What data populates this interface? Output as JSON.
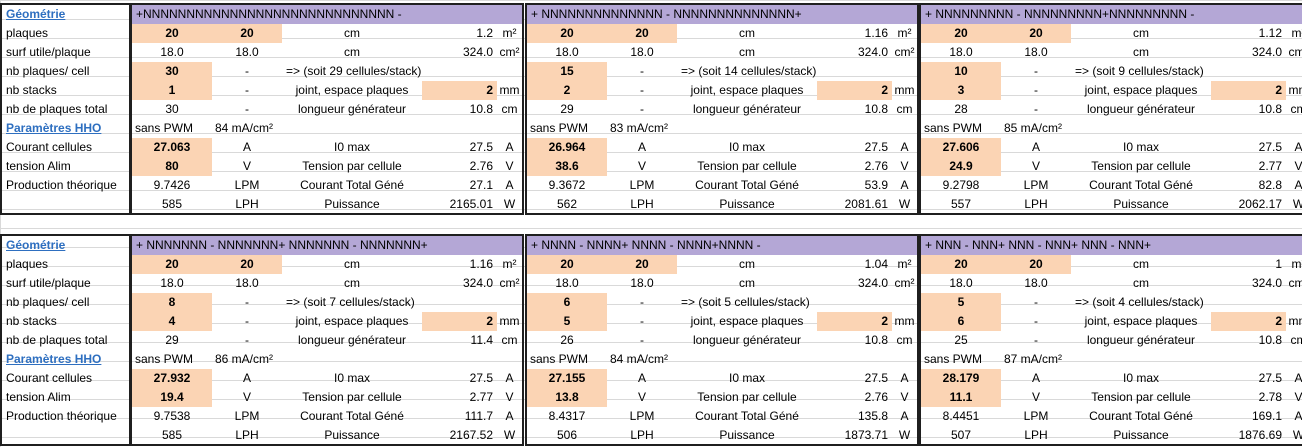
{
  "labels": {
    "geometrie": "Géométrie",
    "plaques": "plaques",
    "surf_utile": "surf utile/plaque",
    "nb_plaques_cell": "nb plaques/ cell",
    "nb_stacks": "nb stacks",
    "nb_plaques_total": "nb de plaques total",
    "parametres_hho": "Paramètres HHO",
    "courant_cellules": "Courant cellules",
    "tension_alim": "tension Alim",
    "production_theorique": "Production théorique"
  },
  "common": {
    "cm": "cm",
    "m2": "m²",
    "cm2": "cm²",
    "dash": "-",
    "joint": "joint, espace plaques",
    "mm": "mm",
    "longueur": "longueur générateur",
    "sans_pwm": "sans PWM",
    "i0max": "I0 max",
    "A": "A",
    "V": "V",
    "tension_cellule": "Tension par cellule",
    "LPM": "LPM",
    "courant_total": "Courant Total Géné",
    "LPH": "LPH",
    "puissance": "Puissance",
    "W": "W"
  },
  "blocks": [
    [
      {
        "header": "+NNNNNNNNNNNNNNNNNNNNNNNNNNNNN -",
        "plaques_a": "20",
        "plaques_b": "20",
        "plaques_val": "1.2",
        "surf_a": "18.0",
        "surf_b": "18.0",
        "surf_val": "324.0",
        "nb_cell": "30",
        "soit": "=> (soit 29 cellules/stack)",
        "nb_stacks": "1",
        "espace": "2",
        "total": "30",
        "longueur_val": "10.8",
        "density": "84 mA/cm²",
        "courant": "27.063",
        "i0": "27.5",
        "tension": "80",
        "tension_cell": "2.76",
        "prod_lpm": "9.7426",
        "courant_total": "27.1",
        "prod_lph": "585",
        "puissance": "2165.01"
      },
      {
        "header": "+ NNNNNNNNNNNNNN - NNNNNNNNNNNNNN+",
        "plaques_a": "20",
        "plaques_b": "20",
        "plaques_val": "1.16",
        "surf_a": "18.0",
        "surf_b": "18.0",
        "surf_val": "324.0",
        "nb_cell": "15",
        "soit": "=> (soit 14 cellules/stack)",
        "nb_stacks": "2",
        "espace": "2",
        "total": "29",
        "longueur_val": "10.8",
        "density": "83 mA/cm²",
        "courant": "26.964",
        "i0": "27.5",
        "tension": "38.6",
        "tension_cell": "2.76",
        "prod_lpm": "9.3672",
        "courant_total": "53.9",
        "prod_lph": "562",
        "puissance": "2081.61"
      },
      {
        "header": "+ NNNNNNNNN - NNNNNNNNN+NNNNNNNNN -",
        "plaques_a": "20",
        "plaques_b": "20",
        "plaques_val": "1.12",
        "surf_a": "18.0",
        "surf_b": "18.0",
        "surf_val": "324.0",
        "nb_cell": "10",
        "soit": "=> (soit 9 cellules/stack)",
        "nb_stacks": "3",
        "espace": "2",
        "total": "28",
        "longueur_val": "10.8",
        "density": "85 mA/cm²",
        "courant": "27.606",
        "i0": "27.5",
        "tension": "24.9",
        "tension_cell": "2.77",
        "prod_lpm": "9.2798",
        "courant_total": "82.8",
        "prod_lph": "557",
        "puissance": "2062.17"
      }
    ],
    [
      {
        "header": "+ NNNNNNN - NNNNNNN+ NNNNNNN - NNNNNNN+",
        "plaques_a": "20",
        "plaques_b": "20",
        "plaques_val": "1.16",
        "surf_a": "18.0",
        "surf_b": "18.0",
        "surf_val": "324.0",
        "nb_cell": "8",
        "soit": "=> (soit 7 cellules/stack)",
        "nb_stacks": "4",
        "espace": "2",
        "total": "29",
        "longueur_val": "11.4",
        "density": "86 mA/cm²",
        "courant": "27.932",
        "i0": "27.5",
        "tension": "19.4",
        "tension_cell": "2.77",
        "prod_lpm": "9.7538",
        "courant_total": "111.7",
        "prod_lph": "585",
        "puissance": "2167.52"
      },
      {
        "header": "+ NNNN - NNNN+ NNNN - NNNN+NNNN -",
        "plaques_a": "20",
        "plaques_b": "20",
        "plaques_val": "1.04",
        "surf_a": "18.0",
        "surf_b": "18.0",
        "surf_val": "324.0",
        "nb_cell": "6",
        "soit": "=> (soit 5 cellules/stack)",
        "nb_stacks": "5",
        "espace": "2",
        "total": "26",
        "longueur_val": "10.8",
        "density": "84 mA/cm²",
        "courant": "27.155",
        "i0": "27.5",
        "tension": "13.8",
        "tension_cell": "2.76",
        "prod_lpm": "8.4317",
        "courant_total": "135.8",
        "prod_lph": "506",
        "puissance": "1873.71"
      },
      {
        "header": "+ NNN - NNN+ NNN - NNN+ NNN - NNN+",
        "plaques_a": "20",
        "plaques_b": "20",
        "plaques_val": "1",
        "surf_a": "18.0",
        "surf_b": "18.0",
        "surf_val": "324.0",
        "nb_cell": "5",
        "soit": "=> (soit 4 cellules/stack)",
        "nb_stacks": "6",
        "espace": "2",
        "total": "25",
        "longueur_val": "10.8",
        "density": "87 mA/cm²",
        "courant": "28.179",
        "i0": "27.5",
        "tension": "11.1",
        "tension_cell": "2.78",
        "prod_lpm": "8.4451",
        "courant_total": "169.1",
        "prod_lph": "507",
        "puissance": "1876.69"
      }
    ]
  ],
  "colors": {
    "header_bg": "#b4a7d6",
    "input_bg": "#fbd4b4",
    "link": "#2e6fc0"
  }
}
